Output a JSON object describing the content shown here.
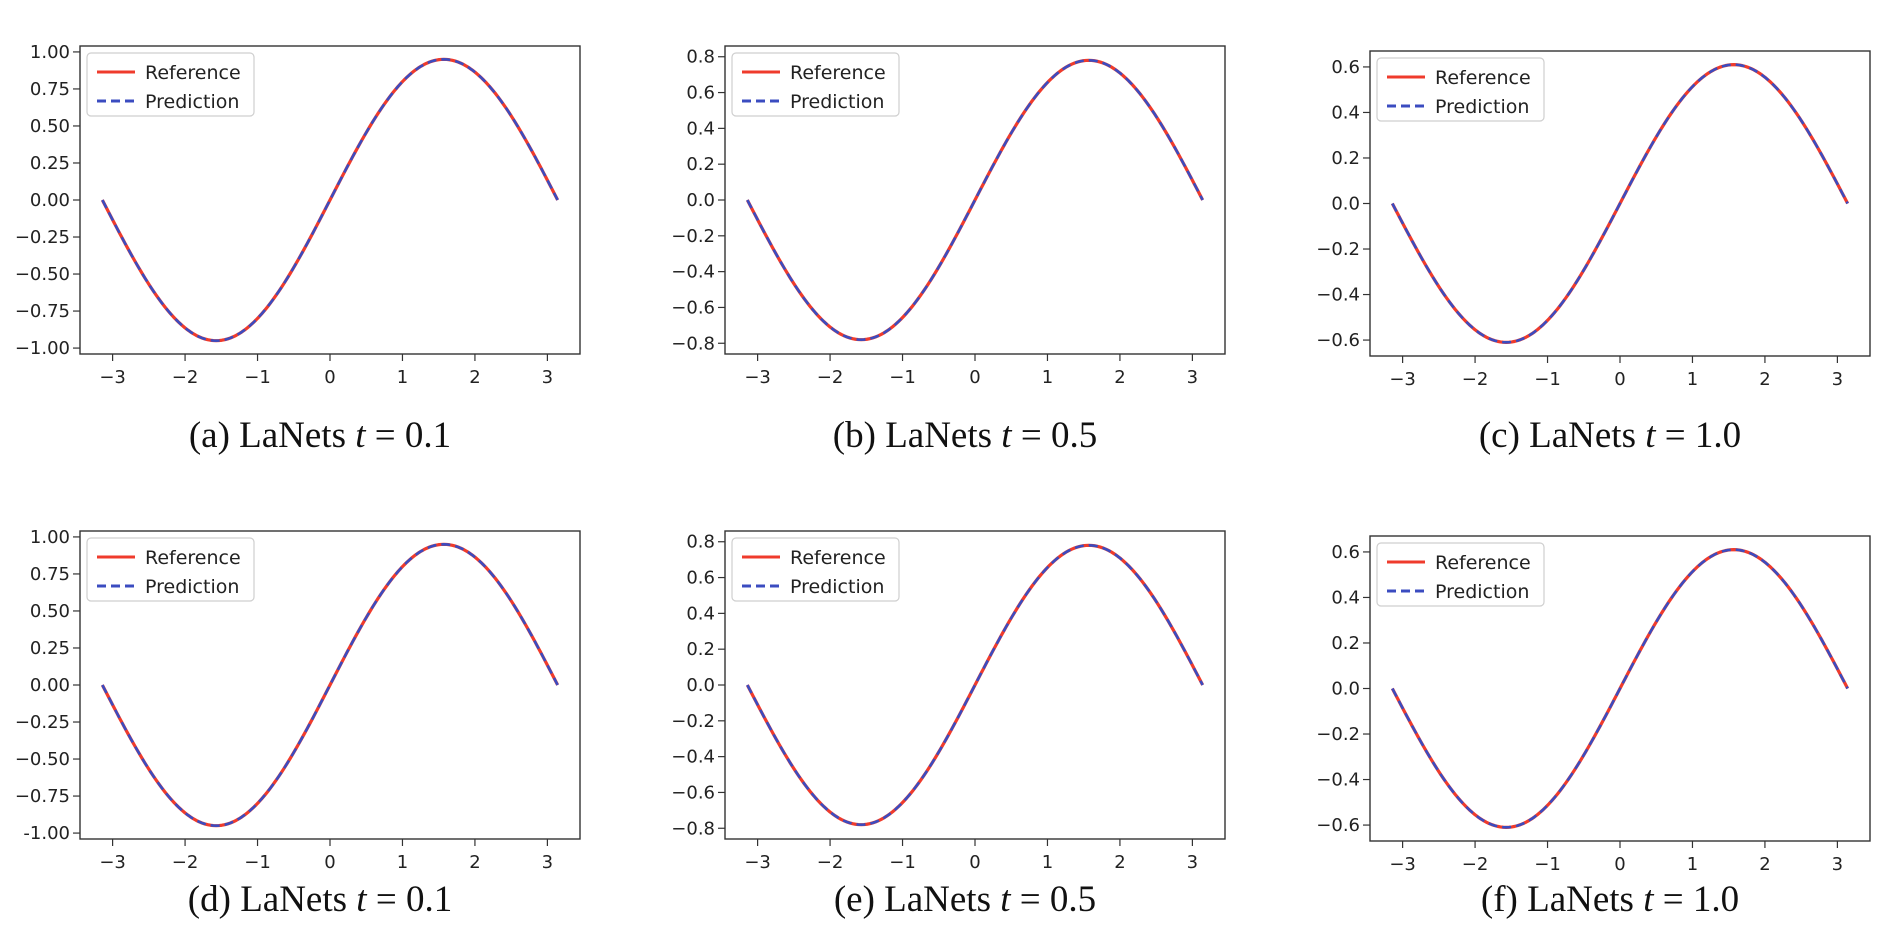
{
  "chart_data": [
    {
      "type": "line",
      "caption": {
        "label": "(a) LaNets",
        "var": "t",
        "eq": " = 0.1"
      },
      "x_range": [
        -3.14159,
        3.14159
      ],
      "amplitude": 0.95,
      "xlim": [
        -3.45,
        3.45
      ],
      "ylim": [
        -1.04,
        1.04
      ],
      "xticks": [
        -3,
        -2,
        -1,
        0,
        1,
        2,
        3
      ],
      "yticks": [
        -1.0,
        -0.75,
        -0.5,
        -0.25,
        0.0,
        0.25,
        0.5,
        0.75,
        1.0
      ],
      "ytick_labels": [
        "−1.00",
        "−0.75",
        "−0.50",
        "−0.25",
        "0.00",
        "0.25",
        "0.50",
        "0.75",
        "1.00"
      ],
      "legend_position": "top-left",
      "series": [
        {
          "name": "Reference",
          "style": "solid",
          "color": "#ef3b2c",
          "function": "amplitude*sin(x)"
        },
        {
          "name": "Prediction",
          "style": "dashed",
          "color": "#3b4cc0",
          "function": "amplitude*sin(x)"
        }
      ]
    },
    {
      "type": "line",
      "caption": {
        "label": "(b) LaNets",
        "var": "t",
        "eq": " = 0.5"
      },
      "x_range": [
        -3.14159,
        3.14159
      ],
      "amplitude": 0.78,
      "xlim": [
        -3.45,
        3.45
      ],
      "ylim": [
        -0.86,
        0.86
      ],
      "xticks": [
        -3,
        -2,
        -1,
        0,
        1,
        2,
        3
      ],
      "yticks": [
        -0.8,
        -0.6,
        -0.4,
        -0.2,
        0.0,
        0.2,
        0.4,
        0.6,
        0.8
      ],
      "ytick_labels": [
        "−0.8",
        "−0.6",
        "−0.4",
        "−0.2",
        "0.0",
        "0.2",
        "0.4",
        "0.6",
        "0.8"
      ],
      "legend_position": "top-left",
      "series": [
        {
          "name": "Reference",
          "style": "solid",
          "color": "#ef3b2c",
          "function": "amplitude*sin(x)"
        },
        {
          "name": "Prediction",
          "style": "dashed",
          "color": "#3b4cc0",
          "function": "amplitude*sin(x)"
        }
      ]
    },
    {
      "type": "line",
      "caption": {
        "label": "(c) LaNets",
        "var": "t",
        "eq": " = 1.0"
      },
      "x_range": [
        -3.14159,
        3.14159
      ],
      "amplitude": 0.61,
      "xlim": [
        -3.45,
        3.45
      ],
      "ylim": [
        -0.67,
        0.67
      ],
      "xticks": [
        -3,
        -2,
        -1,
        0,
        1,
        2,
        3
      ],
      "yticks": [
        -0.6,
        -0.4,
        -0.2,
        0.0,
        0.2,
        0.4,
        0.6
      ],
      "ytick_labels": [
        "−0.6",
        "−0.4",
        "−0.2",
        "0.0",
        "0.2",
        "0.4",
        "0.6"
      ],
      "legend_position": "top-left",
      "series": [
        {
          "name": "Reference",
          "style": "solid",
          "color": "#ef3b2c",
          "function": "amplitude*sin(x)"
        },
        {
          "name": "Prediction",
          "style": "dashed",
          "color": "#3b4cc0",
          "function": "amplitude*sin(x)"
        }
      ]
    },
    {
      "type": "line",
      "caption": {
        "label": "(d) LaNets",
        "var": "t",
        "eq": " = 0.1"
      },
      "x_range": [
        -3.14159,
        3.14159
      ],
      "amplitude": 0.95,
      "xlim": [
        -3.45,
        3.45
      ],
      "ylim": [
        -1.04,
        1.04
      ],
      "xticks": [
        -3,
        -2,
        -1,
        0,
        1,
        2,
        3
      ],
      "yticks": [
        -1.0,
        -0.75,
        -0.5,
        -0.25,
        0.0,
        0.25,
        0.5,
        0.75,
        1.0
      ],
      "ytick_labels": [
        "-1.00",
        "−0.75",
        "−0.50",
        "−0.25",
        "0.00",
        "0.25",
        "0.50",
        "0.75",
        "1.00"
      ],
      "legend_position": "top-left",
      "series": [
        {
          "name": "Reference",
          "style": "solid",
          "color": "#ef3b2c",
          "function": "amplitude*sin(x)"
        },
        {
          "name": "Prediction",
          "style": "dashed",
          "color": "#3b4cc0",
          "function": "amplitude*sin(x)"
        }
      ]
    },
    {
      "type": "line",
      "caption": {
        "label": "(e) LaNets",
        "var": "t",
        "eq": " = 0.5"
      },
      "x_range": [
        -3.14159,
        3.14159
      ],
      "amplitude": 0.78,
      "xlim": [
        -3.45,
        3.45
      ],
      "ylim": [
        -0.86,
        0.86
      ],
      "xticks": [
        -3,
        -2,
        -1,
        0,
        1,
        2,
        3
      ],
      "yticks": [
        -0.8,
        -0.6,
        -0.4,
        -0.2,
        0.0,
        0.2,
        0.4,
        0.6,
        0.8
      ],
      "ytick_labels": [
        "−0.8",
        "−0.6",
        "−0.4",
        "−0.2",
        "0.0",
        "0.2",
        "0.4",
        "0.6",
        "0.8"
      ],
      "legend_position": "top-left",
      "series": [
        {
          "name": "Reference",
          "style": "solid",
          "color": "#ef3b2c",
          "function": "amplitude*sin(x)"
        },
        {
          "name": "Prediction",
          "style": "dashed",
          "color": "#3b4cc0",
          "function": "amplitude*sin(x)"
        }
      ]
    },
    {
      "type": "line",
      "caption": {
        "label": "(f) LaNets",
        "var": "t",
        "eq": " = 1.0"
      },
      "x_range": [
        -3.14159,
        3.14159
      ],
      "amplitude": 0.61,
      "xlim": [
        -3.45,
        3.45
      ],
      "ylim": [
        -0.67,
        0.67
      ],
      "xticks": [
        -3,
        -2,
        -1,
        0,
        1,
        2,
        3
      ],
      "yticks": [
        -0.6,
        -0.4,
        -0.2,
        0.0,
        0.2,
        0.4,
        0.6
      ],
      "ytick_labels": [
        "−0.6",
        "−0.4",
        "−0.2",
        "0.0",
        "0.2",
        "0.4",
        "0.6"
      ],
      "legend_position": "top-left",
      "series": [
        {
          "name": "Reference",
          "style": "solid",
          "color": "#ef3b2c",
          "function": "amplitude*sin(x)"
        },
        {
          "name": "Prediction",
          "style": "dashed",
          "color": "#3b4cc0",
          "function": "amplitude*sin(x)"
        }
      ]
    }
  ]
}
